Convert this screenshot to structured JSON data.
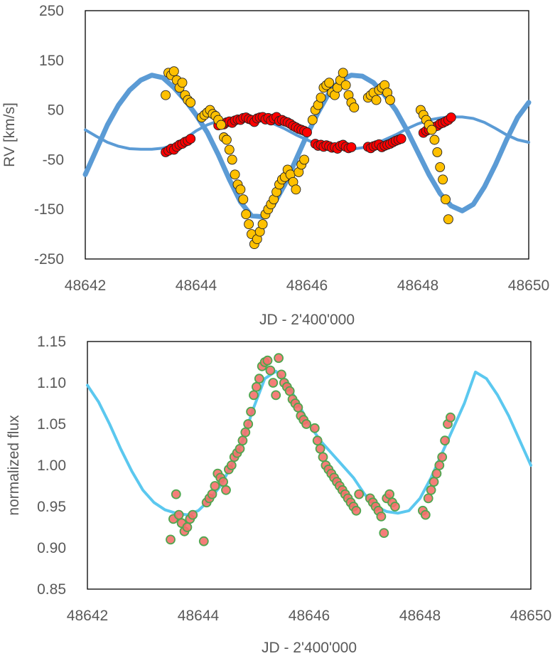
{
  "chart_data": [
    {
      "id": "rv",
      "type": "scatter",
      "title": "",
      "xlabel": "JD - 2'400'000",
      "ylabel": "RV [km/s]",
      "xlim": [
        48642,
        48650
      ],
      "ylim": [
        -250,
        250
      ],
      "xticks": [
        48642,
        48644,
        48646,
        48648,
        48650
      ],
      "yticks": [
        -250,
        -150,
        -50,
        50,
        150,
        250
      ],
      "grid": false,
      "legend": "none",
      "series": [
        {
          "kind": "model-line",
          "color": "#5B9BD5",
          "x": [
            48642.0,
            48642.2,
            48642.4,
            48642.6,
            48642.8,
            48643.0,
            48643.2,
            48643.4,
            48643.6,
            48643.8,
            48644.0,
            48644.2,
            48644.4,
            48644.6,
            48644.8,
            48645.0,
            48645.2,
            48645.4,
            48645.6,
            48645.8,
            48646.0,
            48646.2,
            48646.4,
            48646.6,
            48646.8,
            48647.0,
            48647.2,
            48647.4,
            48647.6,
            48647.8,
            48648.0,
            48648.2,
            48648.4,
            48648.6,
            48648.8,
            48649.0,
            48649.2,
            48649.4,
            48649.6,
            48649.8,
            48650.0
          ],
          "y": [
            10,
            -3,
            -15,
            -23,
            -28,
            -29,
            -29,
            -27,
            -20,
            -8,
            8,
            20,
            28,
            32,
            33,
            32,
            28,
            22,
            12,
            0,
            -10,
            -20,
            -26,
            -29,
            -29,
            -26,
            -20,
            -10,
            0,
            12,
            22,
            30,
            34,
            36,
            36,
            33,
            25,
            13,
            0,
            -10,
            -15
          ]
        },
        {
          "kind": "model-line",
          "color": "#5B9BD5",
          "x": [
            48642.0,
            48642.2,
            48642.4,
            48642.6,
            48642.8,
            48643.0,
            48643.2,
            48643.4,
            48643.6,
            48643.8,
            48644.0,
            48644.2,
            48644.4,
            48644.6,
            48644.8,
            48645.0,
            48645.2,
            48645.4,
            48645.6,
            48645.8,
            48646.0,
            48646.2,
            48646.4,
            48646.6,
            48646.8,
            48647.0,
            48647.2,
            48647.4,
            48647.6,
            48647.8,
            48648.0,
            48648.2,
            48648.4,
            48648.6,
            48648.8,
            48649.0,
            48649.2,
            48649.4,
            48649.6,
            48649.8,
            48650.0
          ],
          "y": [
            -80,
            -30,
            20,
            60,
            90,
            110,
            120,
            115,
            95,
            70,
            40,
            5,
            -40,
            -90,
            -135,
            -163,
            -165,
            -140,
            -100,
            -50,
            0,
            45,
            85,
            110,
            120,
            118,
            105,
            80,
            50,
            10,
            -35,
            -80,
            -118,
            -143,
            -153,
            -140,
            -105,
            -60,
            -10,
            35,
            65
          ]
        },
        {
          "kind": "points",
          "color": "#FF0000",
          "x": [
            48643.45,
            48643.5,
            48643.55,
            48643.6,
            48643.65,
            48643.7,
            48643.75,
            48643.8,
            48643.85,
            48643.9,
            48644.4,
            48644.45,
            48644.5,
            48644.55,
            48644.6,
            48644.65,
            48644.7,
            48644.75,
            48644.8,
            48644.85,
            48644.9,
            48644.95,
            48645.0,
            48645.05,
            48645.1,
            48645.15,
            48645.2,
            48645.25,
            48645.3,
            48645.35,
            48645.4,
            48645.45,
            48645.5,
            48645.55,
            48645.6,
            48645.65,
            48645.7,
            48645.75,
            48645.8,
            48645.85,
            48645.9,
            48645.95,
            48646.0,
            48646.15,
            48646.2,
            48646.25,
            48646.3,
            48646.35,
            48646.4,
            48646.45,
            48646.5,
            48646.55,
            48646.6,
            48646.65,
            48646.7,
            48646.75,
            48646.8,
            48647.1,
            48647.15,
            48647.2,
            48647.25,
            48647.3,
            48647.35,
            48647.4,
            48647.45,
            48647.5,
            48647.55,
            48647.6,
            48647.65,
            48647.7,
            48648.1,
            48648.15,
            48648.2,
            48648.25,
            48648.3,
            48648.35,
            48648.4,
            48648.45,
            48648.5,
            48648.55,
            48648.6
          ],
          "y": [
            -35,
            -32,
            -28,
            -30,
            -24,
            -20,
            -18,
            -14,
            -12,
            -8,
            19,
            22,
            21,
            25,
            27,
            24,
            29,
            31,
            30,
            34,
            35,
            32,
            30,
            26,
            33,
            35,
            36,
            31,
            34,
            29,
            33,
            36,
            28,
            30,
            27,
            25,
            22,
            18,
            15,
            12,
            10,
            8,
            5,
            -18,
            -22,
            -20,
            -24,
            -21,
            -23,
            -26,
            -25,
            -28,
            -22,
            -20,
            -24,
            -27,
            -25,
            -24,
            -27,
            -23,
            -21,
            -19,
            -25,
            -22,
            -20,
            -18,
            -15,
            -12,
            -10,
            -8,
            4,
            8,
            10,
            13,
            16,
            18,
            22,
            24,
            27,
            30,
            35
          ]
        },
        {
          "kind": "points",
          "color": "#FFC000",
          "x": [
            48643.45,
            48643.5,
            48643.55,
            48643.6,
            48643.65,
            48643.7,
            48643.75,
            48643.8,
            48643.85,
            48643.9,
            48644.1,
            48644.15,
            48644.2,
            48644.25,
            48644.3,
            48644.35,
            48644.4,
            48644.45,
            48644.5,
            48644.55,
            48644.6,
            48644.65,
            48644.7,
            48644.75,
            48644.8,
            48644.85,
            48644.9,
            48644.95,
            48645.0,
            48645.05,
            48645.1,
            48645.15,
            48645.2,
            48645.25,
            48645.3,
            48645.35,
            48645.4,
            48645.45,
            48645.5,
            48645.55,
            48645.6,
            48645.65,
            48645.7,
            48645.75,
            48645.8,
            48645.85,
            48645.9,
            48645.95,
            48646.1,
            48646.15,
            48646.2,
            48646.25,
            48646.3,
            48646.35,
            48646.4,
            48646.45,
            48646.5,
            48646.55,
            48646.6,
            48646.65,
            48646.7,
            48646.75,
            48646.8,
            48646.85,
            48647.1,
            48647.15,
            48647.2,
            48647.25,
            48647.3,
            48647.35,
            48647.4,
            48647.45,
            48647.5,
            48648.05,
            48648.1,
            48648.15,
            48648.2,
            48648.25,
            48648.3,
            48648.35,
            48648.4,
            48648.45,
            48648.5,
            48648.55
          ],
          "y": [
            80,
            125,
            120,
            128,
            110,
            95,
            105,
            80,
            70,
            65,
            35,
            40,
            45,
            50,
            42,
            38,
            30,
            20,
            -5,
            -10,
            -30,
            -50,
            -80,
            -100,
            -110,
            -130,
            -160,
            -180,
            -200,
            -220,
            -210,
            -195,
            -180,
            -160,
            -150,
            -140,
            -130,
            -115,
            -100,
            -90,
            -85,
            -70,
            -80,
            -95,
            -110,
            -75,
            -60,
            -50,
            30,
            50,
            60,
            75,
            95,
            100,
            105,
            85,
            80,
            95,
            110,
            125,
            100,
            80,
            65,
            55,
            75,
            80,
            85,
            70,
            90,
            95,
            100,
            85,
            70,
            50,
            40,
            30,
            20,
            10,
            -10,
            -35,
            -65,
            -90,
            -130,
            -170
          ]
        }
      ]
    },
    {
      "id": "flux",
      "type": "scatter",
      "title": "",
      "xlabel": "JD - 2'400'000",
      "ylabel": "normalized flux",
      "xlim": [
        48642,
        48650
      ],
      "ylim": [
        0.85,
        1.15
      ],
      "xticks": [
        48642,
        48644,
        48646,
        48648,
        48650
      ],
      "yticks": [
        0.85,
        0.9,
        0.95,
        1.0,
        1.05,
        1.1,
        1.15
      ],
      "grid": false,
      "legend": "none",
      "series": [
        {
          "kind": "model-line",
          "color": "#5BC8EF",
          "x": [
            48642.0,
            48642.2,
            48642.4,
            48642.6,
            48642.8,
            48643.0,
            48643.2,
            48643.4,
            48643.6,
            48643.8,
            48644.0,
            48644.2,
            48644.4,
            48644.6,
            48644.8,
            48645.0,
            48645.2,
            48645.4,
            48645.6,
            48645.8,
            48646.0,
            48646.2,
            48646.4,
            48646.6,
            48646.8,
            48647.0,
            48647.2,
            48647.4,
            48647.6,
            48647.8,
            48648.0,
            48648.2,
            48648.4,
            48648.6,
            48648.8,
            48649.0,
            48649.2,
            48649.4,
            48649.6,
            48649.8,
            48650.0
          ],
          "y": [
            1.097,
            1.077,
            1.05,
            1.02,
            0.993,
            0.97,
            0.955,
            0.946,
            0.942,
            0.94,
            0.945,
            0.958,
            0.975,
            1.0,
            1.03,
            1.07,
            1.105,
            1.114,
            1.1,
            1.075,
            1.05,
            1.03,
            1.015,
            1.0,
            0.985,
            0.965,
            0.95,
            0.944,
            0.942,
            0.945,
            0.96,
            0.985,
            1.015,
            1.045,
            1.075,
            1.113,
            1.105,
            1.085,
            1.06,
            1.03,
            1.0
          ]
        },
        {
          "kind": "points",
          "color": "#F4706A",
          "edge": "#4FA64F",
          "x": [
            48643.5,
            48643.55,
            48643.6,
            48643.65,
            48643.7,
            48643.75,
            48643.8,
            48643.85,
            48643.9,
            48644.1,
            48644.15,
            48644.2,
            48644.25,
            48644.3,
            48644.35,
            48644.4,
            48644.45,
            48644.5,
            48644.55,
            48644.6,
            48644.65,
            48644.7,
            48644.75,
            48644.8,
            48644.85,
            48644.9,
            48644.95,
            48645.0,
            48645.05,
            48645.1,
            48645.15,
            48645.2,
            48645.25,
            48645.3,
            48645.35,
            48645.4,
            48645.45,
            48645.5,
            48645.55,
            48645.6,
            48645.65,
            48645.7,
            48645.75,
            48645.8,
            48645.85,
            48645.9,
            48645.95,
            48646.1,
            48646.15,
            48646.2,
            48646.25,
            48646.3,
            48646.35,
            48646.4,
            48646.45,
            48646.5,
            48646.55,
            48646.6,
            48646.65,
            48646.7,
            48646.75,
            48646.8,
            48646.85,
            48646.9,
            48647.1,
            48647.15,
            48647.2,
            48647.25,
            48647.3,
            48647.35,
            48647.4,
            48647.45,
            48647.5,
            48647.55,
            48648.05,
            48648.1,
            48648.15,
            48648.2,
            48648.25,
            48648.3,
            48648.35,
            48648.4,
            48648.45,
            48648.5,
            48648.55
          ],
          "y": [
            0.91,
            0.935,
            0.965,
            0.94,
            0.93,
            0.92,
            0.925,
            0.935,
            0.94,
            0.908,
            0.955,
            0.96,
            0.965,
            0.975,
            0.99,
            0.985,
            0.98,
            0.97,
            0.995,
            1.0,
            1.01,
            1.015,
            1.02,
            1.03,
            1.04,
            1.05,
            1.065,
            1.085,
            1.095,
            1.105,
            1.12,
            1.125,
            1.127,
            1.115,
            1.1,
            1.085,
            1.13,
            1.11,
            1.1,
            1.095,
            1.09,
            1.08,
            1.075,
            1.07,
            1.06,
            1.055,
            1.05,
            1.045,
            1.03,
            1.02,
            1.01,
            1.0,
            0.995,
            0.99,
            0.985,
            0.98,
            0.975,
            0.97,
            0.965,
            0.96,
            0.955,
            0.95,
            0.945,
            0.965,
            0.96,
            0.955,
            0.95,
            0.945,
            0.938,
            0.918,
            0.96,
            0.965,
            0.955,
            0.95,
            0.945,
            0.94,
            0.96,
            0.97,
            0.98,
            0.99,
            1.0,
            1.01,
            1.03,
            1.05,
            1.058
          ]
        }
      ]
    }
  ]
}
